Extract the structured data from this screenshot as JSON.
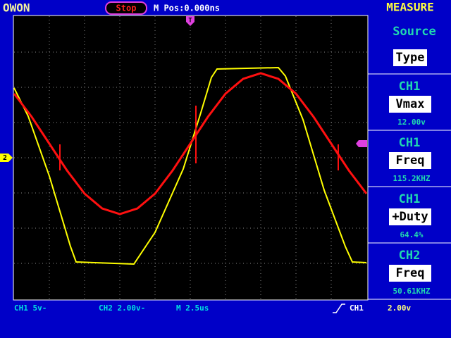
{
  "header": {
    "brand": "OWON",
    "status": "Stop",
    "position": "M Pos:0.000ns",
    "menu_title": "MEASURE"
  },
  "markers": {
    "trigger": "T",
    "ch2": "2"
  },
  "menu": {
    "source_label": "Source",
    "source_value": "Type",
    "items": [
      {
        "channel": "CH1",
        "type": "Vmax",
        "reading": "12.00v"
      },
      {
        "channel": "CH1",
        "type": "Freq",
        "reading": "115.2KHZ"
      },
      {
        "channel": "CH1",
        "type": "+Duty",
        "reading": "64.4%"
      },
      {
        "channel": "CH2",
        "type": "Freq",
        "reading": "50.61KHZ"
      }
    ]
  },
  "footer": {
    "ch1_scale": "CH1 5v-",
    "ch2_scale": "CH2 2.00v-",
    "timebase": "M 2.5us",
    "trigger_source": "CH1",
    "trigger_level": "2.00v"
  }
}
